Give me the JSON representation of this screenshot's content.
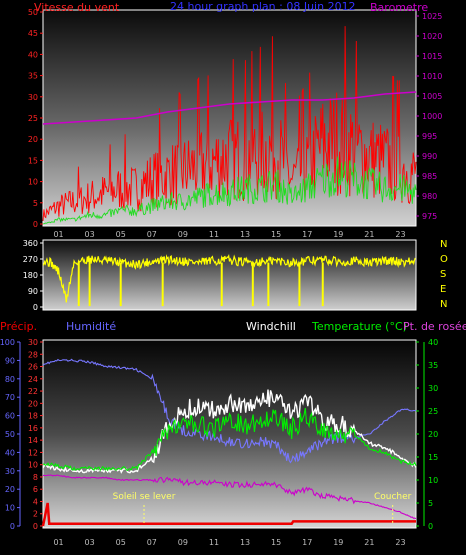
{
  "header": {
    "wind_title": "Vitesse du vent",
    "center_title": "24 hour graph plan : 08 Juin 2012",
    "baro_title": "Barometre"
  },
  "direction_letters": [
    "N",
    "O",
    "S",
    "E",
    "N"
  ],
  "bottom_header": {
    "precip": "Précip.",
    "humidity": "Humidité",
    "windchill": "Windchill",
    "temperature": "Temperature (°C)",
    "dewpoint": "Pt. de rosée"
  },
  "annotations": {
    "sunrise": "Soleil se lever",
    "sunset": "Coucher"
  },
  "colors": {
    "wind": "#ff0000",
    "gust": "#22dd22",
    "baro": "#cc00cc",
    "direction": "#ffff00",
    "precip": "#ee0000",
    "humidity": "#7777ff",
    "windchill": "#ffffff",
    "temperature": "#00ee00",
    "dewpoint": "#cc00cc",
    "axis_text_bottom_left": "#6666ff",
    "axis_text_bottom_right": "#00ee00"
  },
  "chart_data": [
    {
      "type": "line",
      "name": "wind-panel",
      "title": "Vitesse du vent",
      "xlabel": "",
      "ylabel": "",
      "x_ticks": [
        "01",
        "03",
        "05",
        "07",
        "09",
        "11",
        "13",
        "15",
        "17",
        "19",
        "21",
        "23"
      ],
      "x_range": [
        0,
        24
      ],
      "y_left_ticks": [
        0,
        5,
        10,
        15,
        20,
        25,
        30,
        35,
        40,
        45,
        50
      ],
      "y_left_range": [
        0,
        50
      ],
      "y_right_ticks": [
        975,
        980,
        985,
        990,
        995,
        1000,
        1005,
        1010,
        1015,
        1020,
        1025
      ],
      "y_right_range": [
        973,
        1026
      ],
      "grid": false,
      "series": [
        {
          "key": "wind",
          "x": [
            0,
            1,
            2,
            3,
            4,
            5,
            6,
            7,
            8,
            9,
            10,
            11,
            12,
            13,
            14,
            15,
            16,
            17,
            18,
            19,
            20,
            21,
            22,
            23,
            24
          ],
          "y": [
            2,
            4,
            5,
            6,
            7,
            8,
            8,
            10,
            11,
            12,
            13,
            14,
            15,
            15,
            16,
            17,
            10,
            13,
            18,
            19,
            17,
            15,
            14,
            13,
            11
          ]
        },
        {
          "key": "gust",
          "x": [
            0,
            1,
            2,
            3,
            4,
            5,
            6,
            7,
            8,
            9,
            10,
            11,
            12,
            13,
            14,
            15,
            16,
            17,
            18,
            19,
            20,
            21,
            22,
            23,
            24
          ],
          "y": [
            0,
            1,
            1,
            2,
            2,
            3,
            3,
            4,
            5,
            5,
            6,
            7,
            7,
            8,
            8,
            9,
            6,
            8,
            10,
            11,
            10,
            9,
            8,
            8,
            7
          ]
        },
        {
          "key": "baro",
          "x": [
            0,
            2,
            4,
            6,
            8,
            10,
            12,
            14,
            16,
            18,
            20,
            22,
            24
          ],
          "y": [
            998,
            998.5,
            999,
            999.5,
            1001,
            1002,
            1003,
            1003.5,
            1004,
            1004,
            1004.5,
            1005.5,
            1006
          ]
        }
      ]
    },
    {
      "type": "line",
      "name": "direction-panel",
      "title": "",
      "x_range": [
        0,
        24
      ],
      "y_ticks": [
        0,
        90,
        180,
        270,
        360
      ],
      "y_range": [
        0,
        360
      ],
      "series": [
        {
          "key": "direction",
          "x": [
            0,
            0.5,
            1,
            1.5,
            2,
            3,
            4,
            5,
            6,
            7,
            8,
            9,
            10,
            11,
            12,
            13,
            14,
            15,
            16,
            17,
            18,
            19,
            20,
            21,
            22,
            23,
            24
          ],
          "y": [
            260,
            250,
            200,
            40,
            250,
            270,
            260,
            250,
            240,
            255,
            265,
            260,
            250,
            260,
            265,
            250,
            255,
            260,
            250,
            260,
            265,
            255,
            260,
            250,
            260,
            255,
            255
          ]
        }
      ],
      "direction_drops_x": [
        2.3,
        3.0,
        5.0,
        7.7,
        11.5,
        13.5,
        14.5,
        16.5,
        18.0
      ]
    },
    {
      "type": "line",
      "name": "bottom-panel",
      "title": "",
      "x_ticks": [
        "01",
        "03",
        "05",
        "07",
        "09",
        "11",
        "13",
        "15",
        "17",
        "19",
        "21",
        "23"
      ],
      "x_range": [
        0,
        24
      ],
      "y_hum_ticks": [
        0,
        10,
        20,
        30,
        40,
        50,
        60,
        70,
        80,
        90,
        100
      ],
      "y_hum_range": [
        0,
        100
      ],
      "y_temp_left_ticks": [
        0,
        2,
        4,
        6,
        8,
        10,
        12,
        14,
        16,
        18,
        20,
        22,
        24,
        26,
        28,
        30
      ],
      "y_temp_left_range": [
        0,
        30
      ],
      "y_right_ticks": [
        0,
        5,
        10,
        15,
        20,
        25,
        30,
        35,
        40
      ],
      "y_right_range": [
        0,
        40
      ],
      "series": [
        {
          "key": "humidity",
          "axis": "hum",
          "x": [
            0,
            1,
            2,
            3,
            4,
            5,
            6,
            7,
            8,
            9,
            10,
            11,
            12,
            13,
            14,
            15,
            16,
            17,
            18,
            19,
            20,
            21,
            22,
            23,
            24
          ],
          "y": [
            88,
            90,
            90,
            89,
            87,
            86,
            85,
            80,
            60,
            52,
            50,
            48,
            46,
            45,
            46,
            44,
            35,
            40,
            46,
            48,
            48,
            50,
            57,
            63,
            63
          ]
        },
        {
          "key": "windchill",
          "axis": "right",
          "x": [
            0,
            1,
            2,
            3,
            4,
            5,
            6,
            7,
            8,
            9,
            10,
            11,
            12,
            13,
            14,
            15,
            16,
            17,
            18,
            19,
            20,
            21,
            22,
            23,
            24
          ],
          "y": [
            13,
            12.5,
            12,
            12,
            12,
            12,
            12,
            15,
            21,
            25,
            26,
            25,
            27,
            26,
            27,
            28,
            24,
            27,
            23,
            22,
            21,
            18,
            17,
            15,
            13
          ]
        },
        {
          "key": "temperature",
          "axis": "right",
          "x": [
            0,
            1,
            2,
            3,
            4,
            5,
            6,
            7,
            8,
            9,
            10,
            11,
            12,
            13,
            14,
            15,
            16,
            17,
            18,
            19,
            20,
            21,
            22,
            23,
            24
          ],
          "y": [
            13.5,
            13,
            12.5,
            12.5,
            12.5,
            12.5,
            12.5,
            16,
            21,
            22,
            22,
            21,
            23,
            22,
            23,
            24,
            21,
            24,
            21,
            20,
            20,
            17,
            16,
            14,
            13.5
          ]
        },
        {
          "key": "dewpoint",
          "axis": "right",
          "x": [
            0,
            1,
            2,
            3,
            4,
            5,
            6,
            7,
            8,
            9,
            10,
            11,
            12,
            13,
            14,
            15,
            16,
            17,
            18,
            19,
            20,
            21,
            22,
            23,
            24
          ],
          "y": [
            11,
            11,
            10.5,
            10.5,
            10.5,
            10,
            10,
            10,
            10,
            9.5,
            9.5,
            9.5,
            9,
            9,
            9,
            9,
            7,
            8,
            6.5,
            6,
            5.5,
            5,
            4,
            3,
            1.5
          ]
        },
        {
          "key": "precip",
          "axis": "right",
          "x": [
            0,
            0.3,
            0.4,
            16,
            16.1,
            24
          ],
          "y": [
            0,
            5,
            0.5,
            0.5,
            1,
            1
          ]
        }
      ],
      "sunrise_x": 6.5,
      "sunset_x": 22.5
    }
  ]
}
